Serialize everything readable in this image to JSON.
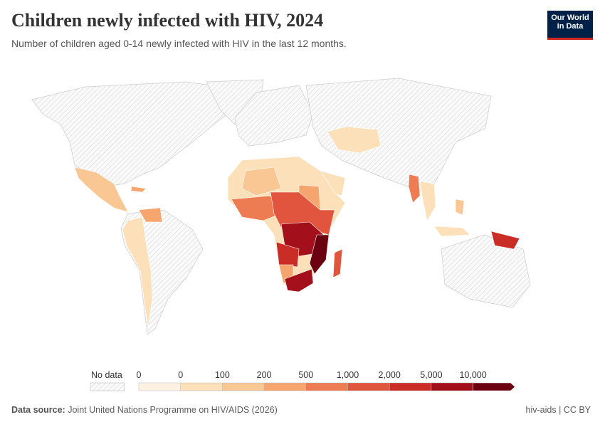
{
  "header": {
    "title": "Children newly infected with HIV, 2024",
    "subtitle": "Number of children aged 0-14 newly infected with HIV in the last 12 months.",
    "logo": [
      "Our World",
      "in Data"
    ]
  },
  "legend": {
    "no_data": "No data",
    "labels": [
      "0",
      "0",
      "100",
      "200",
      "500",
      "1,000",
      "2,000",
      "5,000",
      "10,000"
    ],
    "colors": [
      "#fdf1e2",
      "#fbe0b9",
      "#f8c794",
      "#f5a56d",
      "#ee7c53",
      "#e1553e",
      "#c92d26",
      "#a30f1a",
      "#6b0011"
    ]
  },
  "footer": {
    "source_label": "Data source:",
    "source": "Joint United Nations Programme on HIV/AIDS (2026)",
    "right": "hiv-aids | CC BY"
  }
}
